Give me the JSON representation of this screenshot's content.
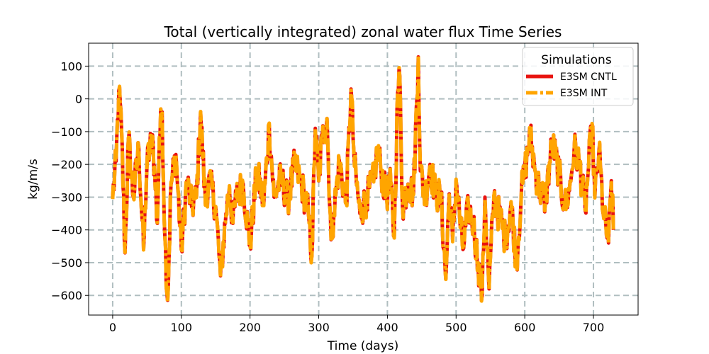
{
  "chart_data": {
    "type": "line",
    "title": "Total (vertically integrated) zonal water flux Time Series",
    "xlabel": "Time (days)",
    "ylabel": "kg/m/s",
    "xlim": [
      -35,
      765
    ],
    "ylim": [
      -660,
      170
    ],
    "xticks": [
      0,
      100,
      200,
      300,
      400,
      500,
      600,
      700
    ],
    "yticks": [
      -600,
      -500,
      -400,
      -300,
      -200,
      -100,
      0,
      100
    ],
    "xtick_labels": [
      "0",
      "100",
      "200",
      "300",
      "400",
      "500",
      "600",
      "700"
    ],
    "ytick_labels": [
      "−600",
      "−500",
      "−400",
      "−300",
      "−200",
      "−100",
      "0",
      "100"
    ],
    "grid": true,
    "legend": {
      "title": "Simulations",
      "position": "top-right"
    },
    "series": [
      {
        "name": "E3SM CNTL",
        "color": "#e8130f",
        "style": "solid",
        "x_start": 0,
        "x_end": 729,
        "n_points": 730,
        "anchors": [
          [
            0,
            -300
          ],
          [
            5,
            -190
          ],
          [
            9,
            25
          ],
          [
            13,
            -100
          ],
          [
            18,
            -470
          ],
          [
            23,
            -120
          ],
          [
            30,
            -300
          ],
          [
            38,
            -150
          ],
          [
            45,
            -460
          ],
          [
            50,
            -200
          ],
          [
            58,
            -110
          ],
          [
            65,
            -380
          ],
          [
            68,
            -120
          ],
          [
            72,
            -40
          ],
          [
            76,
            -420
          ],
          [
            80,
            -620
          ],
          [
            85,
            -260
          ],
          [
            92,
            -170
          ],
          [
            100,
            -460
          ],
          [
            108,
            -250
          ],
          [
            115,
            -330
          ],
          [
            122,
            -300
          ],
          [
            128,
            -40
          ],
          [
            135,
            -320
          ],
          [
            140,
            -240
          ],
          [
            150,
            -330
          ],
          [
            157,
            -540
          ],
          [
            165,
            -350
          ],
          [
            170,
            -270
          ],
          [
            175,
            -380
          ],
          [
            180,
            -300
          ],
          [
            190,
            -260
          ],
          [
            200,
            -450
          ],
          [
            210,
            -220
          ],
          [
            220,
            -320
          ],
          [
            228,
            -80
          ],
          [
            235,
            -300
          ],
          [
            245,
            -240
          ],
          [
            255,
            -310
          ],
          [
            265,
            -200
          ],
          [
            275,
            -260
          ],
          [
            285,
            -350
          ],
          [
            290,
            -480
          ],
          [
            295,
            -90
          ],
          [
            300,
            -250
          ],
          [
            305,
            -120
          ],
          [
            312,
            -60
          ],
          [
            318,
            -430
          ],
          [
            322,
            -350
          ],
          [
            330,
            -190
          ],
          [
            340,
            -320
          ],
          [
            347,
            30
          ],
          [
            352,
            -200
          ],
          [
            360,
            -350
          ],
          [
            370,
            -300
          ],
          [
            380,
            -250
          ],
          [
            386,
            -150
          ],
          [
            390,
            -210
          ],
          [
            398,
            -300
          ],
          [
            405,
            -260
          ],
          [
            410,
            -420
          ],
          [
            415,
            20
          ],
          [
            418,
            70
          ],
          [
            422,
            -330
          ],
          [
            430,
            -260
          ],
          [
            438,
            -290
          ],
          [
            445,
            130
          ],
          [
            448,
            -220
          ],
          [
            455,
            -300
          ],
          [
            462,
            -200
          ],
          [
            470,
            -290
          ],
          [
            478,
            -300
          ],
          [
            485,
            -550
          ],
          [
            490,
            -290
          ],
          [
            495,
            -430
          ],
          [
            500,
            -250
          ],
          [
            510,
            -460
          ],
          [
            518,
            -330
          ],
          [
            525,
            -380
          ],
          [
            532,
            -500
          ],
          [
            538,
            -600
          ],
          [
            542,
            -300
          ],
          [
            548,
            -580
          ],
          [
            555,
            -300
          ],
          [
            565,
            -370
          ],
          [
            572,
            -430
          ],
          [
            580,
            -320
          ],
          [
            588,
            -500
          ],
          [
            595,
            -290
          ],
          [
            600,
            -220
          ],
          [
            608,
            -110
          ],
          [
            615,
            -220
          ],
          [
            622,
            -280
          ],
          [
            630,
            -310
          ],
          [
            640,
            -130
          ],
          [
            650,
            -230
          ],
          [
            658,
            -330
          ],
          [
            665,
            -280
          ],
          [
            672,
            -150
          ],
          [
            680,
            -200
          ],
          [
            688,
            -340
          ],
          [
            692,
            -230
          ],
          [
            698,
            -80
          ],
          [
            702,
            -300
          ],
          [
            708,
            -160
          ],
          [
            715,
            -360
          ],
          [
            722,
            -440
          ],
          [
            726,
            -250
          ],
          [
            729,
            -400
          ]
        ]
      },
      {
        "name": "E3SM INT",
        "color": "#ffa500",
        "style": "dashdot",
        "x_start": 0,
        "x_end": 729,
        "n_points": 730,
        "anchors": [
          [
            0,
            -300
          ],
          [
            5,
            -190
          ],
          [
            9,
            25
          ],
          [
            13,
            -100
          ],
          [
            18,
            -470
          ],
          [
            23,
            -120
          ],
          [
            30,
            -300
          ],
          [
            38,
            -150
          ],
          [
            45,
            -460
          ],
          [
            50,
            -200
          ],
          [
            58,
            -110
          ],
          [
            65,
            -380
          ],
          [
            68,
            -120
          ],
          [
            72,
            -40
          ],
          [
            76,
            -420
          ],
          [
            80,
            -620
          ],
          [
            85,
            -260
          ],
          [
            92,
            -170
          ],
          [
            100,
            -460
          ],
          [
            108,
            -250
          ],
          [
            115,
            -330
          ],
          [
            122,
            -300
          ],
          [
            128,
            -40
          ],
          [
            135,
            -320
          ],
          [
            140,
            -240
          ],
          [
            150,
            -330
          ],
          [
            157,
            -540
          ],
          [
            165,
            -350
          ],
          [
            170,
            -270
          ],
          [
            175,
            -380
          ],
          [
            180,
            -300
          ],
          [
            190,
            -260
          ],
          [
            200,
            -450
          ],
          [
            210,
            -220
          ],
          [
            220,
            -320
          ],
          [
            228,
            -80
          ],
          [
            235,
            -300
          ],
          [
            245,
            -240
          ],
          [
            255,
            -310
          ],
          [
            265,
            -200
          ],
          [
            275,
            -260
          ],
          [
            285,
            -350
          ],
          [
            290,
            -480
          ],
          [
            295,
            -90
          ],
          [
            300,
            -250
          ],
          [
            305,
            -120
          ],
          [
            312,
            -60
          ],
          [
            318,
            -430
          ],
          [
            322,
            -350
          ],
          [
            330,
            -190
          ],
          [
            340,
            -320
          ],
          [
            347,
            30
          ],
          [
            352,
            -200
          ],
          [
            360,
            -350
          ],
          [
            370,
            -300
          ],
          [
            380,
            -250
          ],
          [
            386,
            -150
          ],
          [
            390,
            -210
          ],
          [
            398,
            -300
          ],
          [
            405,
            -260
          ],
          [
            410,
            -420
          ],
          [
            415,
            20
          ],
          [
            418,
            70
          ],
          [
            422,
            -330
          ],
          [
            430,
            -260
          ],
          [
            438,
            -290
          ],
          [
            445,
            130
          ],
          [
            448,
            -220
          ],
          [
            455,
            -300
          ],
          [
            462,
            -200
          ],
          [
            470,
            -290
          ],
          [
            478,
            -300
          ],
          [
            485,
            -550
          ],
          [
            490,
            -290
          ],
          [
            495,
            -430
          ],
          [
            500,
            -250
          ],
          [
            510,
            -460
          ],
          [
            518,
            -330
          ],
          [
            525,
            -380
          ],
          [
            532,
            -500
          ],
          [
            538,
            -600
          ],
          [
            542,
            -300
          ],
          [
            548,
            -580
          ],
          [
            555,
            -300
          ],
          [
            565,
            -370
          ],
          [
            572,
            -430
          ],
          [
            580,
            -320
          ],
          [
            588,
            -500
          ],
          [
            595,
            -290
          ],
          [
            600,
            -220
          ],
          [
            608,
            -110
          ],
          [
            615,
            -220
          ],
          [
            622,
            -280
          ],
          [
            630,
            -310
          ],
          [
            640,
            -130
          ],
          [
            650,
            -230
          ],
          [
            658,
            -330
          ],
          [
            665,
            -280
          ],
          [
            672,
            -150
          ],
          [
            680,
            -200
          ],
          [
            688,
            -340
          ],
          [
            692,
            -230
          ],
          [
            698,
            -80
          ],
          [
            702,
            -300
          ],
          [
            708,
            -160
          ],
          [
            715,
            -360
          ],
          [
            722,
            -440
          ],
          [
            726,
            -250
          ],
          [
            729,
            -400
          ]
        ]
      }
    ]
  }
}
